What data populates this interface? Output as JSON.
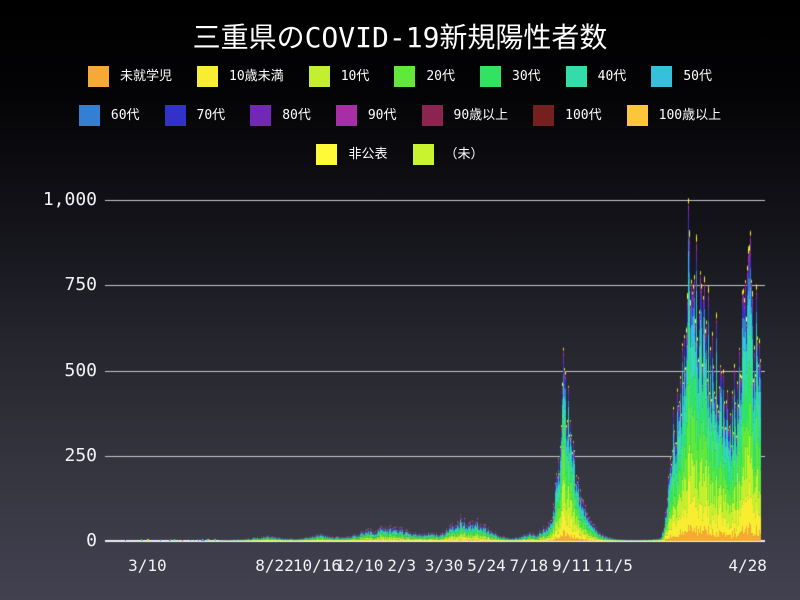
{
  "title": "三重県のCOVID-19新規陽性者数",
  "legend": {
    "rows": [
      [
        0,
        1,
        2,
        3,
        4,
        5,
        6
      ],
      [
        7,
        8,
        9,
        10,
        11,
        12,
        13
      ],
      [
        14,
        15
      ]
    ]
  },
  "chart_data": {
    "type": "bar",
    "stacked": true,
    "title": "三重県のCOVID-19新規陽性者数",
    "xlabel": "",
    "ylabel": "",
    "ylim": [
      0,
      1000
    ],
    "grid": true,
    "legend_position": "top",
    "background": "black-to-slate gradient",
    "grid_color": "#c7c7cd",
    "axis_color": "#f2f2f5",
    "yticks": [
      {
        "label": "0",
        "value": 0
      },
      {
        "label": "250",
        "value": 250
      },
      {
        "label": "500",
        "value": 500
      },
      {
        "label": "750",
        "value": 750
      },
      {
        "label": "1,000",
        "value": 1000
      }
    ],
    "xlim_days": [
      0,
      850
    ],
    "xticks": [
      {
        "label": "3/10",
        "day": 55
      },
      {
        "label": "8/22",
        "day": 220
      },
      {
        "label": "10/16",
        "day": 275
      },
      {
        "label": "12/10",
        "day": 330
      },
      {
        "label": "2/3",
        "day": 385
      },
      {
        "label": "3/30",
        "day": 440
      },
      {
        "label": "5/24",
        "day": 495
      },
      {
        "label": "7/18",
        "day": 550
      },
      {
        "label": "9/11",
        "day": 605
      },
      {
        "label": "11/5",
        "day": 660
      },
      {
        "label": "4/28",
        "day": 834
      }
    ],
    "series": [
      {
        "name": "未就学児",
        "color": "#f7a835",
        "share": 0.042
      },
      {
        "name": "10歳未満",
        "color": "#f9ed32",
        "share": 0.112
      },
      {
        "name": "10代",
        "color": "#c3ef2e",
        "share": 0.142
      },
      {
        "name": "20代",
        "color": "#62e73b",
        "share": 0.148
      },
      {
        "name": "30代",
        "color": "#32e261",
        "share": 0.142
      },
      {
        "name": "40代",
        "color": "#33ddaa",
        "share": 0.145
      },
      {
        "name": "50代",
        "color": "#35c0dc",
        "share": 0.088
      },
      {
        "name": "60代",
        "color": "#327fd3",
        "share": 0.054
      },
      {
        "name": "70代",
        "color": "#3232c8",
        "share": 0.038
      },
      {
        "name": "80代",
        "color": "#7128b5",
        "share": 0.028
      },
      {
        "name": "90代",
        "color": "#a72ea4",
        "share": 0.016
      },
      {
        "name": "90歳以上",
        "color": "#8c2450",
        "share": 0.006
      },
      {
        "name": "100代",
        "color": "#74201f",
        "share": 0.003
      },
      {
        "name": "100歳以上",
        "color": "#fcc53c",
        "share": 0.002
      },
      {
        "name": "非公表",
        "color": "#fdfa38",
        "share": 0.012
      },
      {
        "name": "（未）",
        "color": "#c9f22f",
        "share": 0.004
      }
    ],
    "daily_totals_keypoints": [
      [
        0,
        0
      ],
      [
        14,
        0
      ],
      [
        18,
        1
      ],
      [
        30,
        0
      ],
      [
        44,
        1
      ],
      [
        52,
        2
      ],
      [
        60,
        2
      ],
      [
        72,
        1
      ],
      [
        95,
        1
      ],
      [
        128,
        2
      ],
      [
        160,
        3
      ],
      [
        180,
        5
      ],
      [
        196,
        10
      ],
      [
        210,
        14
      ],
      [
        221,
        11
      ],
      [
        234,
        7
      ],
      [
        251,
        6
      ],
      [
        268,
        12
      ],
      [
        281,
        19
      ],
      [
        294,
        13
      ],
      [
        312,
        11
      ],
      [
        328,
        20
      ],
      [
        341,
        34
      ],
      [
        350,
        28
      ],
      [
        364,
        44
      ],
      [
        376,
        38
      ],
      [
        386,
        33
      ],
      [
        399,
        24
      ],
      [
        409,
        17
      ],
      [
        420,
        25
      ],
      [
        430,
        19
      ],
      [
        440,
        28
      ],
      [
        451,
        44
      ],
      [
        461,
        62
      ],
      [
        471,
        48
      ],
      [
        482,
        56
      ],
      [
        492,
        40
      ],
      [
        502,
        28
      ],
      [
        512,
        16
      ],
      [
        521,
        10
      ],
      [
        530,
        8
      ],
      [
        541,
        14
      ],
      [
        551,
        22
      ],
      [
        559,
        18
      ],
      [
        566,
        30
      ],
      [
        574,
        45
      ],
      [
        579,
        75
      ],
      [
        583,
        120
      ],
      [
        587,
        190
      ],
      [
        590,
        280
      ],
      [
        592,
        400
      ],
      [
        594,
        510
      ],
      [
        596,
        445
      ],
      [
        600,
        375
      ],
      [
        605,
        295
      ],
      [
        610,
        215
      ],
      [
        615,
        150
      ],
      [
        622,
        95
      ],
      [
        628,
        60
      ],
      [
        635,
        38
      ],
      [
        643,
        22
      ],
      [
        650,
        13
      ],
      [
        659,
        7
      ],
      [
        670,
        4
      ],
      [
        682,
        3
      ],
      [
        695,
        3
      ],
      [
        708,
        4
      ],
      [
        717,
        7
      ],
      [
        722,
        15
      ],
      [
        726,
        60
      ],
      [
        729,
        130
      ],
      [
        731,
        210
      ],
      [
        734,
        290
      ],
      [
        737,
        330
      ],
      [
        739,
        310
      ],
      [
        742,
        380
      ],
      [
        744,
        440
      ],
      [
        747,
        390
      ],
      [
        749,
        520
      ],
      [
        752,
        580
      ],
      [
        755,
        700
      ],
      [
        756,
        860
      ],
      [
        757,
        995
      ],
      [
        758,
        800
      ],
      [
        760,
        720
      ],
      [
        762,
        820
      ],
      [
        765,
        650
      ],
      [
        767,
        750
      ],
      [
        770,
        580
      ],
      [
        773,
        680
      ],
      [
        775,
        600
      ],
      [
        778,
        700
      ],
      [
        780,
        520
      ],
      [
        783,
        620
      ],
      [
        785,
        460
      ],
      [
        788,
        560
      ],
      [
        790,
        480
      ],
      [
        793,
        540
      ],
      [
        796,
        430
      ],
      [
        798,
        500
      ],
      [
        801,
        380
      ],
      [
        803,
        440
      ],
      [
        806,
        350
      ],
      [
        808,
        400
      ],
      [
        811,
        330
      ],
      [
        813,
        380
      ],
      [
        816,
        420
      ],
      [
        819,
        360
      ],
      [
        821,
        480
      ],
      [
        824,
        560
      ],
      [
        826,
        620
      ],
      [
        829,
        700
      ],
      [
        832,
        760
      ],
      [
        834,
        680
      ],
      [
        837,
        740
      ],
      [
        839,
        620
      ],
      [
        842,
        560
      ],
      [
        844,
        640
      ],
      [
        847,
        520
      ],
      [
        850,
        480
      ]
    ]
  }
}
